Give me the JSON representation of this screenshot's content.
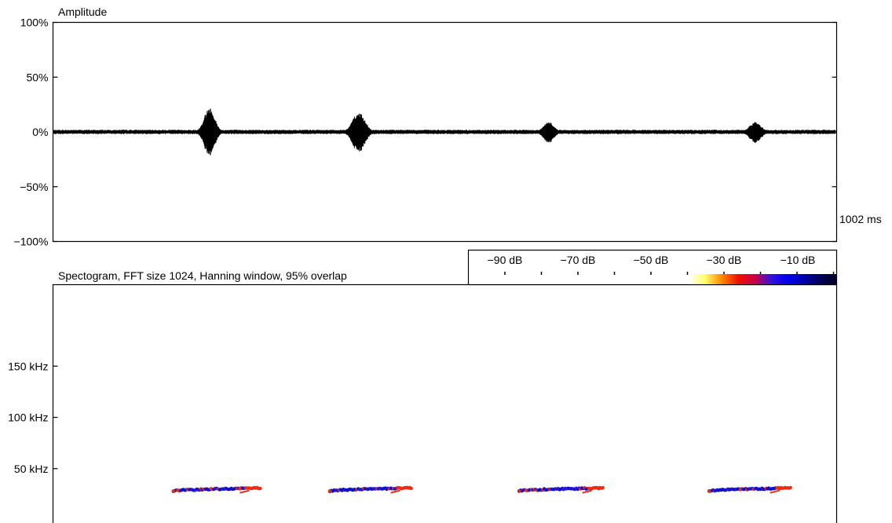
{
  "chart_data": [
    {
      "type": "line",
      "title": "Amplitude",
      "y_ticks": [
        "100%",
        "50%",
        "0%",
        "−50%",
        "−100%"
      ],
      "y_tick_values": [
        100,
        50,
        0,
        -50,
        -100
      ],
      "ylim": [
        -100,
        100
      ],
      "xlim_ms": [
        0,
        1002
      ],
      "x_end_label": "1002 ms",
      "noise_floor_pct": 2,
      "pulses": [
        {
          "center_ms": 200,
          "width_ms": 24,
          "peak_pct": 22,
          "trough_pct": -22
        },
        {
          "center_ms": 391,
          "width_ms": 28,
          "peak_pct": 18,
          "trough_pct": -19
        },
        {
          "center_ms": 634,
          "width_ms": 24,
          "peak_pct": 9,
          "trough_pct": -10
        },
        {
          "center_ms": 898,
          "width_ms": 26,
          "peak_pct": 9,
          "trough_pct": -10
        }
      ],
      "grid": false
    },
    {
      "type": "heatmap",
      "title": "Spectogram, FFT size 1024, Hanning window, 95% overlap",
      "y_ticks": [
        "150 kHz",
        "100 kHz",
        "50 kHz"
      ],
      "y_tick_values": [
        150,
        100,
        50
      ],
      "xlim_ms": [
        0,
        1002
      ],
      "colorbar": {
        "labels": [
          "−90 dB",
          "−70 dB",
          "−50 dB",
          "−30 dB",
          "−10 dB"
        ],
        "colors": [
          "#ffffff",
          "#ffff66",
          "#ff8800",
          "#ee1100",
          "#cc0044",
          "#3311dd",
          "#0000ee",
          "#0000aa",
          "#000055",
          "#000022"
        ]
      },
      "calls": [
        {
          "start_ms": 154,
          "end_ms": 265,
          "start_khz": 28,
          "end_khz": 31
        },
        {
          "start_ms": 354,
          "end_ms": 458,
          "start_khz": 28,
          "end_khz": 31
        },
        {
          "start_ms": 596,
          "end_ms": 703,
          "start_khz": 28,
          "end_khz": 31
        },
        {
          "start_ms": 839,
          "end_ms": 943,
          "start_khz": 28,
          "end_khz": 31
        }
      ]
    }
  ]
}
